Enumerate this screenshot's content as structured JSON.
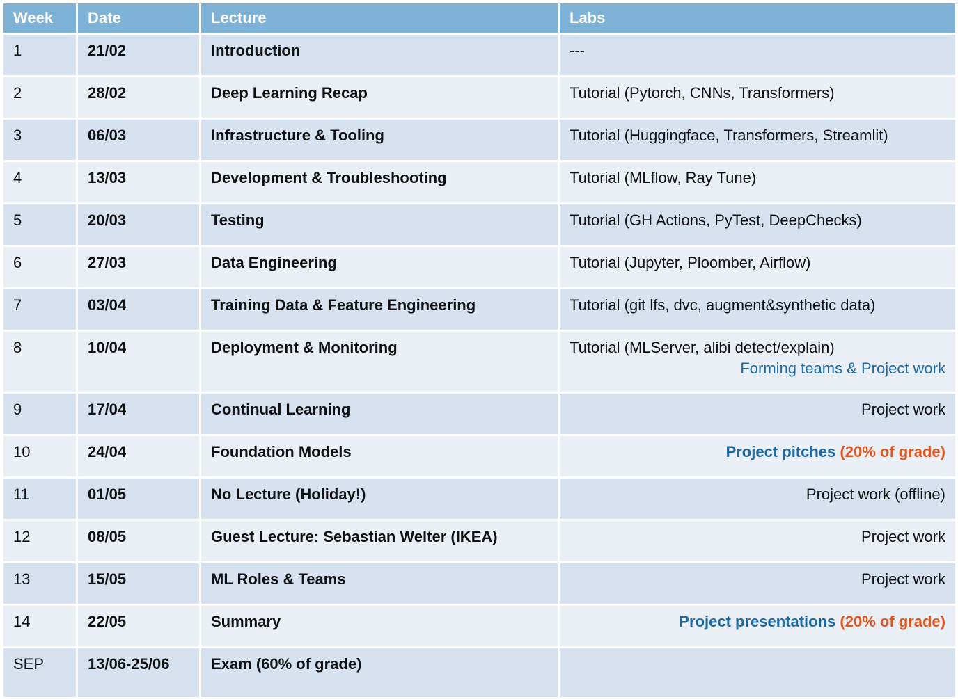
{
  "headers": {
    "week": "Week",
    "date": "Date",
    "lecture": "Lecture",
    "labs": "Labs"
  },
  "rows": [
    {
      "week": "1",
      "date": "21/02",
      "lecture": "Introduction",
      "labs": "---"
    },
    {
      "week": "2",
      "date": "28/02",
      "lecture": "Deep Learning Recap",
      "labs": "Tutorial (Pytorch, CNNs, Transformers)"
    },
    {
      "week": "3",
      "date": "06/03",
      "lecture": "Infrastructure & Tooling",
      "labs": "Tutorial (Huggingface, Transformers, Streamlit)"
    },
    {
      "week": "4",
      "date": "13/03",
      "lecture": "Development & Troubleshooting",
      "labs": "Tutorial (MLflow, Ray Tune)"
    },
    {
      "week": "5",
      "date": "20/03",
      "lecture": "Testing",
      "labs": "Tutorial (GH Actions, PyTest, DeepChecks)"
    },
    {
      "week": "6",
      "date": "27/03",
      "lecture": "Data Engineering",
      "labs": "Tutorial (Jupyter, Ploomber, Airflow)"
    },
    {
      "week": "7",
      "date": "03/04",
      "lecture": "Training Data & Feature Engineering",
      "labs": "Tutorial (git lfs, dvc, augment&synthetic data)"
    },
    {
      "week": "8",
      "date": "10/04",
      "lecture": "Deployment & Monitoring",
      "labs": "Tutorial (MLServer, alibi detect/explain)",
      "labs_extra": "Forming teams & Project work"
    },
    {
      "week": "9",
      "date": "17/04",
      "lecture": "Continual Learning",
      "labs": "Project work"
    },
    {
      "week": "10",
      "date": "24/04",
      "lecture": "Foundation Models",
      "labs": "Project pitches",
      "labs_extra": "(20% of grade)"
    },
    {
      "week": "11",
      "date": "01/05",
      "lecture": "No Lecture (Holiday!)",
      "labs": "Project work (offline)"
    },
    {
      "week": "12",
      "date": "08/05",
      "lecture": "Guest Lecture: Sebastian Welter (IKEA)",
      "labs": "Project work"
    },
    {
      "week": "13",
      "date": "15/05",
      "lecture": "ML Roles & Teams",
      "labs": "Project work"
    },
    {
      "week": "14",
      "date": "22/05",
      "lecture": "Summary",
      "labs": "Project presentations",
      "labs_extra": "(20% of grade)"
    },
    {
      "week": "SEP",
      "date": "13/06-25/06",
      "lecture": "Exam (60% of grade)",
      "labs": ""
    }
  ],
  "colors": {
    "header_bg": "#7eb2d6",
    "row_dark": "#d6e2ef",
    "row_light": "#eaeff6",
    "project_blue": "#1d6aa5",
    "grade_orange": "#e0561f",
    "holiday_green": "#5a8a1e",
    "guest_yellow": "#f0b400"
  }
}
